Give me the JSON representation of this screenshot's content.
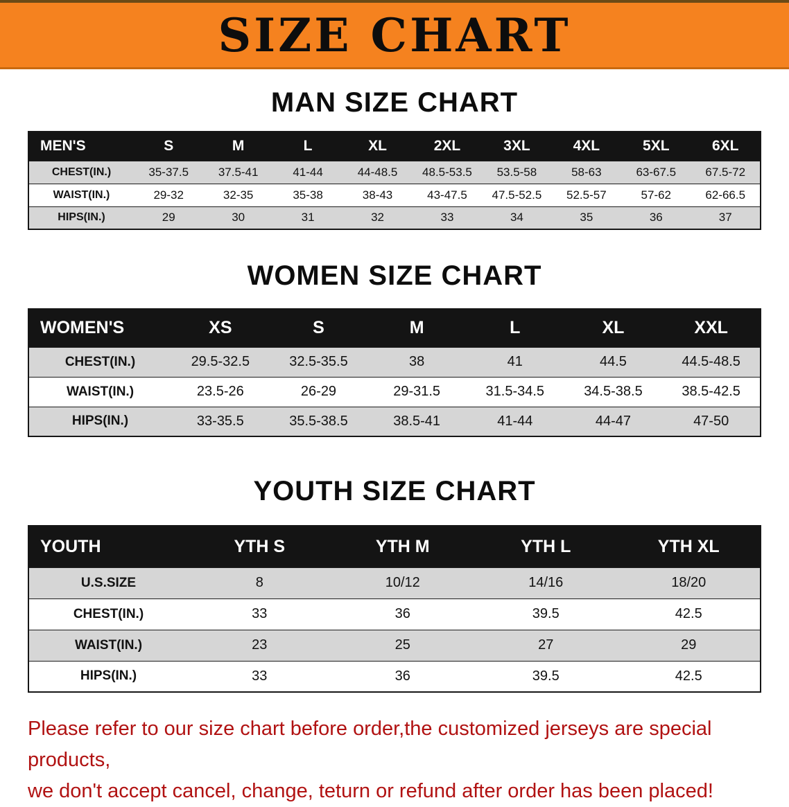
{
  "page": {
    "banner_title": "SIZE CHART"
  },
  "colors": {
    "banner_bg": "#f5821f",
    "header_bg": "#141414",
    "stripe": "#d6d6d6",
    "note_red": "#b11212"
  },
  "sections": [
    {
      "heading": "MAN SIZE CHART",
      "group_label": "MEN'S",
      "columns": [
        "S",
        "M",
        "L",
        "XL",
        "2XL",
        "3XL",
        "4XL",
        "5XL",
        "6XL"
      ],
      "rows": [
        {
          "label": "CHEST(IN.)",
          "values": [
            "35-37.5",
            "37.5-41",
            "41-44",
            "44-48.5",
            "48.5-53.5",
            "53.5-58",
            "58-63",
            "63-67.5",
            "67.5-72"
          ]
        },
        {
          "label": "WAIST(IN.)",
          "values": [
            "29-32",
            "32-35",
            "35-38",
            "38-43",
            "43-47.5",
            "47.5-52.5",
            "52.5-57",
            "57-62",
            "62-66.5"
          ]
        },
        {
          "label": "HIPS(IN.)",
          "values": [
            "29",
            "30",
            "31",
            "32",
            "33",
            "34",
            "35",
            "36",
            "37"
          ]
        }
      ]
    },
    {
      "heading": "WOMEN SIZE CHART",
      "group_label": "WOMEN'S",
      "columns": [
        "XS",
        "S",
        "M",
        "L",
        "XL",
        "XXL"
      ],
      "rows": [
        {
          "label": "CHEST(IN.)",
          "values": [
            "29.5-32.5",
            "32.5-35.5",
            "38",
            "41",
            "44.5",
            "44.5-48.5"
          ]
        },
        {
          "label": "WAIST(IN.)",
          "values": [
            "23.5-26",
            "26-29",
            "29-31.5",
            "31.5-34.5",
            "34.5-38.5",
            "38.5-42.5"
          ]
        },
        {
          "label": "HIPS(IN.)",
          "values": [
            "33-35.5",
            "35.5-38.5",
            "38.5-41",
            "41-44",
            "44-47",
            "47-50"
          ]
        }
      ]
    },
    {
      "heading": "YOUTH SIZE CHART",
      "group_label": "YOUTH",
      "columns": [
        "YTH S",
        "YTH M",
        "YTH L",
        "YTH XL"
      ],
      "rows": [
        {
          "label": "U.S.SIZE",
          "values": [
            "8",
            "10/12",
            "14/16",
            "18/20"
          ]
        },
        {
          "label": "CHEST(IN.)",
          "values": [
            "33",
            "36",
            "39.5",
            "42.5"
          ]
        },
        {
          "label": "WAIST(IN.)",
          "values": [
            "23",
            "25",
            "27",
            "29"
          ]
        },
        {
          "label": "HIPS(IN.)",
          "values": [
            "33",
            "36",
            "39.5",
            "42.5"
          ]
        }
      ]
    }
  ],
  "footer": {
    "lines": [
      "Please refer to our size chart before order,the customized jerseys are special products,",
      "we don't accept cancel, change, teturn or refund after order has been placed!"
    ]
  }
}
